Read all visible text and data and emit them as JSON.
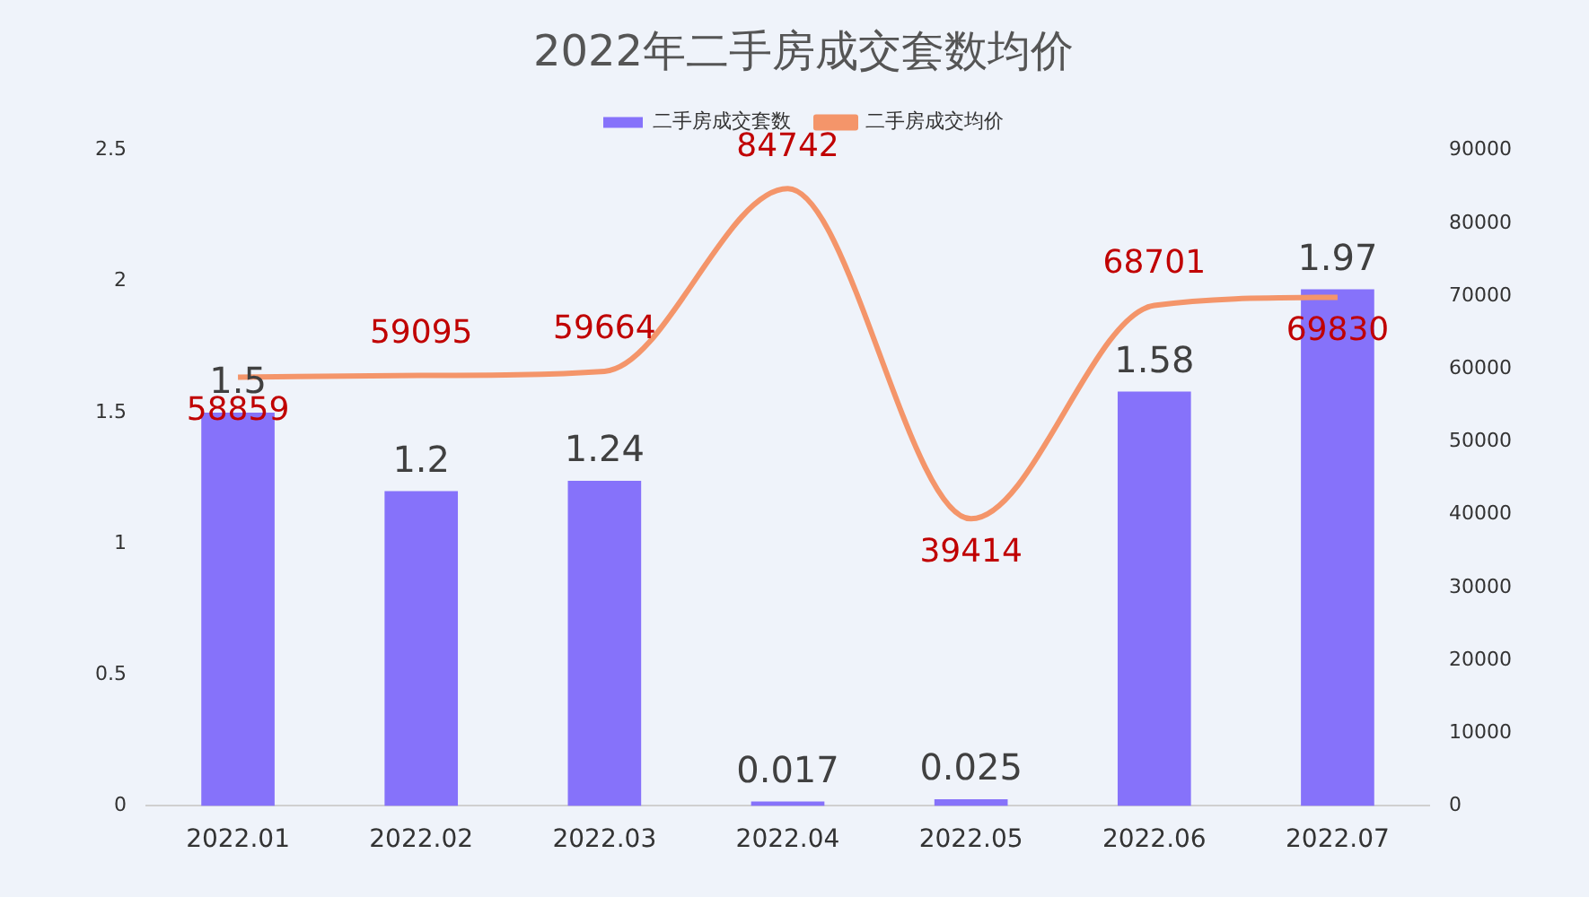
{
  "chart_data": {
    "type": "bar",
    "title": "2022年二手房成交套数均价",
    "categories": [
      "2022.01",
      "2022.02",
      "2022.03",
      "2022.04",
      "2022.05",
      "2022.06",
      "2022.07"
    ],
    "series": [
      {
        "name": "二手房成交套数",
        "color": "#8672fa",
        "values": [
          1.5,
          1.2,
          1.24,
          0.017,
          0.025,
          1.58,
          1.97
        ]
      },
      {
        "name": "二手房成交均价",
        "type": "line",
        "axis": "y2",
        "color": "#f4956a",
        "values": [
          58859,
          59095,
          59664,
          84742,
          39414,
          68701,
          69830
        ]
      }
    ],
    "ylim": [
      0,
      2.5
    ],
    "yticks": [
      0,
      0.5,
      1,
      1.5,
      2,
      2.5
    ],
    "y2lim": [
      0,
      90000
    ],
    "y2ticks": [
      0,
      10000,
      20000,
      30000,
      40000,
      50000,
      60000,
      70000,
      80000,
      90000
    ],
    "data_labels": true,
    "legend": "top",
    "grid": false,
    "marker": "none",
    "line_style": "solid"
  }
}
